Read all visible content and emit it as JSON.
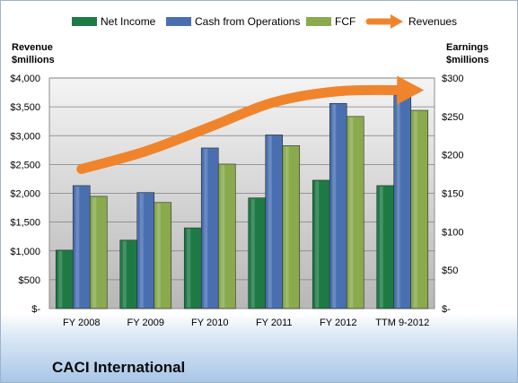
{
  "chart_data": {
    "type": "bar",
    "title": "CACI International",
    "categories": [
      "FY 2008",
      "FY 2009",
      "FY 2010",
      "FY 2011",
      "FY 2012",
      "TTM 9-2012"
    ],
    "left_axis": {
      "label_line1": "Revenue",
      "label_line2": "$millions",
      "ylim": [
        0,
        4000
      ],
      "ticks": [
        0,
        500,
        1000,
        1500,
        2000,
        2500,
        3000,
        3500,
        4000
      ],
      "tick_labels": [
        "$-",
        "$500",
        "$1,000",
        "$1,500",
        "$2,000",
        "$2,500",
        "$3,000",
        "$3,500",
        "$4,000"
      ]
    },
    "right_axis": {
      "label_line1": "Earnings",
      "label_line2": "$millions",
      "ylim": [
        0,
        300
      ],
      "ticks": [
        0,
        50,
        100,
        150,
        200,
        250,
        300
      ],
      "tick_labels": [
        "$-",
        "$50",
        "$100",
        "$150",
        "$200",
        "$250",
        "$300"
      ]
    },
    "series": [
      {
        "name": "Net Income",
        "axis": "right",
        "color": "#1e7a45",
        "values": [
          76,
          89,
          105,
          144,
          167,
          160
        ]
      },
      {
        "name": "Cash from Operations",
        "axis": "right",
        "color": "#4a6fb0",
        "values": [
          160,
          151,
          209,
          226,
          267,
          278
        ]
      },
      {
        "name": "FCF",
        "axis": "right",
        "color": "#8aaa4e",
        "values": [
          146,
          138,
          188,
          212,
          250,
          258
        ]
      },
      {
        "name": "Revenues",
        "axis": "left",
        "type": "line-arrow",
        "color": "#f0842c",
        "values": [
          2420,
          2730,
          3150,
          3580,
          3770,
          3790
        ]
      }
    ],
    "grid": true,
    "legend_position": "top"
  }
}
